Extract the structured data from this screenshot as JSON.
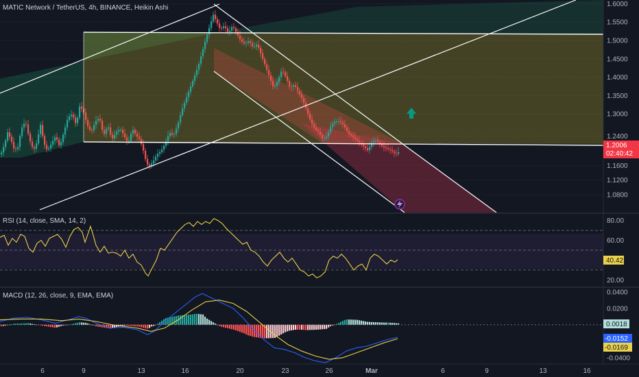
{
  "header": {
    "title": "MATIC Network / TetherUS, 4h, BINANCE, Heikin Ashi"
  },
  "colors": {
    "background": "#131722",
    "up_candle": "#26a69a",
    "down_candle": "#ef5350",
    "trendline": "#ffffff",
    "rsi_line": "#e9d14a",
    "macd_line": "#2962ff",
    "signal_line": "#e9d14a",
    "price_badge": "#f23645",
    "target_arrow": "#089981"
  },
  "chart_data": [
    {
      "type": "candlestick",
      "pane": "price",
      "title": "MATIC Network / TetherUS, 4h, BINANCE, Heikin Ashi",
      "ylim": [
        1.03,
        1.61
      ],
      "ytick_labels": [
        "1.6000",
        "1.5500",
        "1.5000",
        "1.4500",
        "1.4000",
        "1.3500",
        "1.3000",
        "1.2400",
        "1.1600",
        "1.1200",
        "1.0800"
      ],
      "ytick_values": [
        1.6,
        1.55,
        1.5,
        1.45,
        1.4,
        1.35,
        1.3,
        1.24,
        1.16,
        1.12,
        1.08
      ],
      "xtick_labels": [
        "6",
        "9",
        "13",
        "16",
        "20",
        "23",
        "26",
        "Mar",
        "6",
        "9",
        "13",
        "16"
      ],
      "last_price": "1.2006",
      "countdown": "02:40:42",
      "close_path": [
        [
          0,
          1.19
        ],
        [
          6,
          1.22
        ],
        [
          10,
          1.25
        ],
        [
          15,
          1.23
        ],
        [
          20,
          1.2
        ],
        [
          25,
          1.21
        ],
        [
          30,
          1.26
        ],
        [
          36,
          1.28
        ],
        [
          42,
          1.23
        ],
        [
          48,
          1.2
        ],
        [
          52,
          1.22
        ],
        [
          58,
          1.27
        ],
        [
          63,
          1.22
        ],
        [
          68,
          1.2
        ],
        [
          74,
          1.22
        ],
        [
          80,
          1.24
        ],
        [
          86,
          1.21
        ],
        [
          92,
          1.25
        ],
        [
          98,
          1.29
        ],
        [
          104,
          1.3
        ],
        [
          110,
          1.27
        ],
        [
          115,
          1.32
        ],
        [
          120,
          1.31
        ],
        [
          126,
          1.27
        ],
        [
          132,
          1.25
        ],
        [
          138,
          1.28
        ],
        [
          144,
          1.29
        ],
        [
          150,
          1.24
        ],
        [
          156,
          1.27
        ],
        [
          162,
          1.23
        ],
        [
          168,
          1.25
        ],
        [
          174,
          1.26
        ],
        [
          180,
          1.24
        ],
        [
          186,
          1.22
        ],
        [
          192,
          1.26
        ],
        [
          198,
          1.24
        ],
        [
          203,
          1.23
        ],
        [
          208,
          1.2
        ],
        [
          212,
          1.17
        ],
        [
          216,
          1.155
        ],
        [
          222,
          1.17
        ],
        [
          228,
          1.19
        ],
        [
          234,
          1.2
        ],
        [
          240,
          1.22
        ],
        [
          246,
          1.25
        ],
        [
          252,
          1.24
        ],
        [
          258,
          1.27
        ],
        [
          264,
          1.31
        ],
        [
          270,
          1.34
        ],
        [
          276,
          1.37
        ],
        [
          282,
          1.4
        ],
        [
          288,
          1.43
        ],
        [
          294,
          1.47
        ],
        [
          300,
          1.51
        ],
        [
          305,
          1.54
        ],
        [
          310,
          1.57
        ],
        [
          315,
          1.55
        ],
        [
          320,
          1.53
        ],
        [
          326,
          1.54
        ],
        [
          332,
          1.52
        ],
        [
          338,
          1.54
        ],
        [
          344,
          1.52
        ],
        [
          350,
          1.5
        ],
        [
          356,
          1.49
        ],
        [
          362,
          1.5
        ],
        [
          368,
          1.48
        ],
        [
          374,
          1.49
        ],
        [
          380,
          1.46
        ],
        [
          386,
          1.43
        ],
        [
          392,
          1.4
        ],
        [
          398,
          1.37
        ],
        [
          404,
          1.39
        ],
        [
          410,
          1.42
        ],
        [
          416,
          1.4
        ],
        [
          422,
          1.37
        ],
        [
          428,
          1.38
        ],
        [
          434,
          1.36
        ],
        [
          440,
          1.34
        ],
        [
          446,
          1.31
        ],
        [
          452,
          1.28
        ],
        [
          458,
          1.26
        ],
        [
          464,
          1.25
        ],
        [
          470,
          1.23
        ],
        [
          476,
          1.24
        ],
        [
          482,
          1.27
        ],
        [
          488,
          1.28
        ],
        [
          494,
          1.28
        ],
        [
          500,
          1.27
        ],
        [
          506,
          1.25
        ],
        [
          512,
          1.24
        ],
        [
          518,
          1.23
        ],
        [
          524,
          1.22
        ],
        [
          530,
          1.21
        ],
        [
          536,
          1.2
        ],
        [
          540,
          1.22
        ],
        [
          546,
          1.23
        ],
        [
          552,
          1.22
        ],
        [
          558,
          1.21
        ],
        [
          564,
          1.205
        ],
        [
          570,
          1.2
        ],
        [
          576,
          1.19
        ],
        [
          580,
          1.196
        ]
      ]
    },
    {
      "type": "line",
      "pane": "rsi",
      "title": "RSI (14, close, SMA, 14, 2)",
      "ylim": [
        14,
        86
      ],
      "ytick_labels": [
        "80.00",
        "60.00",
        "20.00"
      ],
      "ytick_values": [
        80,
        60,
        20
      ],
      "bands": [
        70,
        50,
        30
      ],
      "last_value": "40.42",
      "path": [
        [
          0,
          63
        ],
        [
          6,
          65
        ],
        [
          12,
          55
        ],
        [
          18,
          62
        ],
        [
          24,
          58
        ],
        [
          30,
          66
        ],
        [
          36,
          64
        ],
        [
          42,
          52
        ],
        [
          48,
          48
        ],
        [
          54,
          57
        ],
        [
          60,
          60
        ],
        [
          66,
          54
        ],
        [
          72,
          62
        ],
        [
          78,
          64
        ],
        [
          84,
          66
        ],
        [
          90,
          61
        ],
        [
          96,
          53
        ],
        [
          102,
          64
        ],
        [
          108,
          71
        ],
        [
          114,
          73
        ],
        [
          120,
          68
        ],
        [
          124,
          58
        ],
        [
          128,
          66
        ],
        [
          132,
          74
        ],
        [
          136,
          65
        ],
        [
          140,
          55
        ],
        [
          146,
          48
        ],
        [
          152,
          54
        ],
        [
          158,
          47
        ],
        [
          164,
          48
        ],
        [
          170,
          47
        ],
        [
          176,
          44
        ],
        [
          182,
          50
        ],
        [
          188,
          42
        ],
        [
          194,
          46
        ],
        [
          200,
          38
        ],
        [
          206,
          35
        ],
        [
          212,
          27
        ],
        [
          216,
          24
        ],
        [
          222,
          32
        ],
        [
          228,
          40
        ],
        [
          234,
          52
        ],
        [
          240,
          50
        ],
        [
          246,
          56
        ],
        [
          252,
          62
        ],
        [
          258,
          68
        ],
        [
          264,
          72
        ],
        [
          270,
          76
        ],
        [
          276,
          78
        ],
        [
          282,
          74
        ],
        [
          288,
          79
        ],
        [
          294,
          76
        ],
        [
          300,
          79
        ],
        [
          306,
          77
        ],
        [
          312,
          82
        ],
        [
          318,
          80
        ],
        [
          324,
          77
        ],
        [
          330,
          72
        ],
        [
          336,
          68
        ],
        [
          342,
          64
        ],
        [
          348,
          60
        ],
        [
          354,
          56
        ],
        [
          360,
          58
        ],
        [
          366,
          50
        ],
        [
          372,
          48
        ],
        [
          378,
          44
        ],
        [
          384,
          38
        ],
        [
          390,
          34
        ],
        [
          396,
          40
        ],
        [
          402,
          44
        ],
        [
          408,
          48
        ],
        [
          414,
          42
        ],
        [
          420,
          38
        ],
        [
          426,
          42
        ],
        [
          432,
          36
        ],
        [
          438,
          30
        ],
        [
          444,
          28
        ],
        [
          450,
          24
        ],
        [
          456,
          26
        ],
        [
          462,
          22
        ],
        [
          468,
          24
        ],
        [
          474,
          28
        ],
        [
          480,
          40
        ],
        [
          486,
          44
        ],
        [
          492,
          42
        ],
        [
          498,
          46
        ],
        [
          504,
          42
        ],
        [
          510,
          36
        ],
        [
          516,
          30
        ],
        [
          522,
          34
        ],
        [
          528,
          36
        ],
        [
          534,
          30
        ],
        [
          540,
          42
        ],
        [
          546,
          46
        ],
        [
          552,
          44
        ],
        [
          558,
          40
        ],
        [
          564,
          36
        ],
        [
          570,
          40
        ],
        [
          576,
          38
        ],
        [
          580,
          40.42
        ]
      ]
    },
    {
      "type": "macd",
      "pane": "macd",
      "title": "MACD (12, 26, close, 9, EMA, EMA)",
      "ylim": [
        -0.046,
        0.044
      ],
      "ytick_labels": [
        "0.0400",
        "0.0200",
        "-0.0400"
      ],
      "ytick_values": [
        0.04,
        0.02,
        -0.04
      ],
      "last_histogram": "0.0018",
      "last_macd": "-0.0152",
      "last_signal": "-0.0169",
      "macd_path": [
        [
          0,
          0.004
        ],
        [
          20,
          0.008
        ],
        [
          40,
          0.009
        ],
        [
          60,
          0.006
        ],
        [
          80,
          0.002
        ],
        [
          100,
          0.006
        ],
        [
          115,
          0.01
        ],
        [
          125,
          0.008
        ],
        [
          140,
          0.002
        ],
        [
          160,
          -0.004
        ],
        [
          180,
          -0.003
        ],
        [
          200,
          -0.006
        ],
        [
          215,
          -0.012
        ],
        [
          225,
          -0.008
        ],
        [
          240,
          0.004
        ],
        [
          255,
          0.014
        ],
        [
          270,
          0.024
        ],
        [
          285,
          0.034
        ],
        [
          295,
          0.038
        ],
        [
          305,
          0.034
        ],
        [
          315,
          0.03
        ],
        [
          325,
          0.026
        ],
        [
          340,
          0.02
        ],
        [
          355,
          0.008
        ],
        [
          370,
          -0.006
        ],
        [
          385,
          -0.018
        ],
        [
          400,
          -0.028
        ],
        [
          415,
          -0.03
        ],
        [
          430,
          -0.034
        ],
        [
          445,
          -0.04
        ],
        [
          460,
          -0.044
        ],
        [
          475,
          -0.046
        ],
        [
          490,
          -0.04
        ],
        [
          505,
          -0.032
        ],
        [
          520,
          -0.028
        ],
        [
          535,
          -0.026
        ],
        [
          550,
          -0.022
        ],
        [
          565,
          -0.018
        ],
        [
          580,
          -0.0152
        ]
      ],
      "signal_path": [
        [
          0,
          0.006
        ],
        [
          30,
          0.007
        ],
        [
          60,
          0.007
        ],
        [
          90,
          0.005
        ],
        [
          115,
          0.007
        ],
        [
          140,
          0.004
        ],
        [
          170,
          -0.001
        ],
        [
          200,
          -0.004
        ],
        [
          220,
          -0.008
        ],
        [
          240,
          -0.004
        ],
        [
          260,
          0.006
        ],
        [
          280,
          0.018
        ],
        [
          300,
          0.028
        ],
        [
          320,
          0.03
        ],
        [
          340,
          0.026
        ],
        [
          360,
          0.016
        ],
        [
          380,
          0.002
        ],
        [
          400,
          -0.012
        ],
        [
          420,
          -0.024
        ],
        [
          440,
          -0.032
        ],
        [
          460,
          -0.038
        ],
        [
          480,
          -0.042
        ],
        [
          500,
          -0.04
        ],
        [
          520,
          -0.034
        ],
        [
          540,
          -0.028
        ],
        [
          560,
          -0.022
        ],
        [
          580,
          -0.0169
        ]
      ]
    }
  ]
}
